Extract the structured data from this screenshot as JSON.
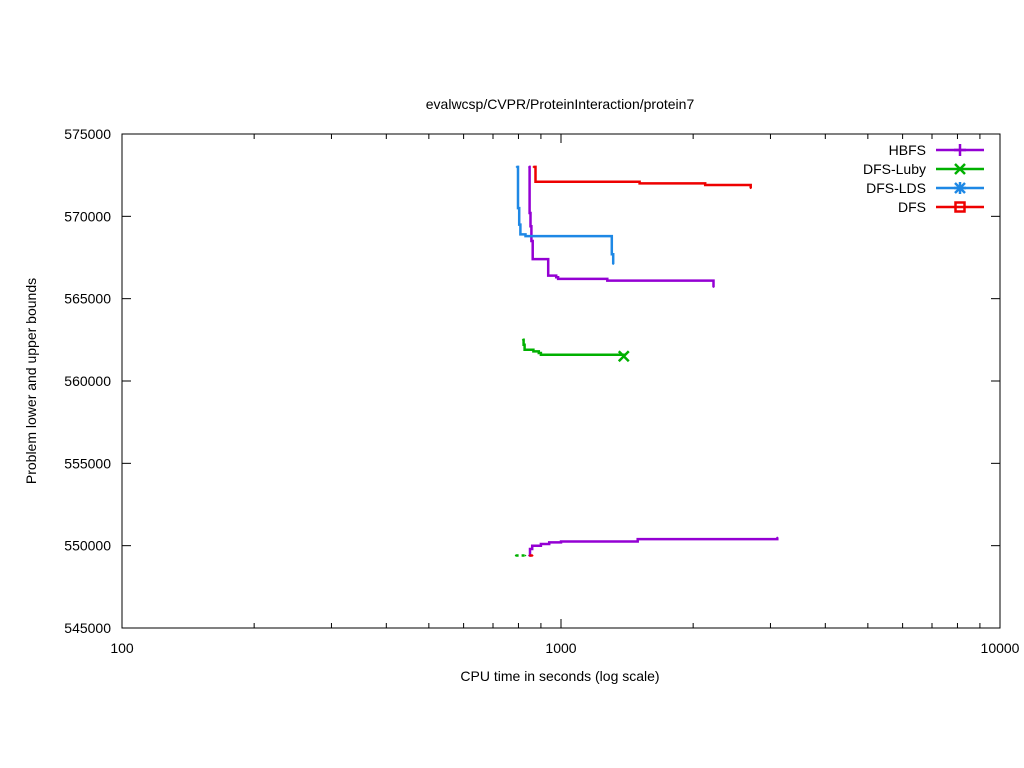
{
  "chart_data": {
    "type": "line",
    "title": "evalwcsp/CVPR/ProteinInteraction/protein7",
    "xlabel": "CPU time in seconds (log scale)",
    "ylabel": "Problem lower and upper bounds",
    "xscale": "log",
    "xlim": [
      100,
      10000
    ],
    "ylim": [
      545000,
      575000
    ],
    "x_ticks": [
      100,
      1000,
      10000
    ],
    "x_tick_labels": [
      "100",
      "1000",
      "10000"
    ],
    "y_ticks": [
      545000,
      550000,
      555000,
      560000,
      565000,
      570000,
      575000
    ],
    "y_tick_labels": [
      "545000",
      "550000",
      "555000",
      "560000",
      "565000",
      "570000",
      "575000"
    ],
    "grid": false,
    "legend_position": "top-right",
    "series": [
      {
        "name": "HBFS",
        "color": "#9400d3",
        "marker": "plus",
        "upper": [
          [
            845,
            573000
          ],
          [
            848,
            570200
          ],
          [
            852,
            569400
          ],
          [
            856,
            568500
          ],
          [
            862,
            567400
          ],
          [
            920,
            567400
          ],
          [
            935,
            566400
          ],
          [
            975,
            566300
          ],
          [
            985,
            566200
          ],
          [
            1270,
            566200
          ],
          [
            1275,
            566100
          ],
          [
            2220,
            566100
          ],
          [
            2225,
            565700
          ]
        ],
        "lower": [
          [
            845,
            549400
          ],
          [
            850,
            549800
          ],
          [
            860,
            550000
          ],
          [
            900,
            550100
          ],
          [
            940,
            550200
          ],
          [
            1000,
            550250
          ],
          [
            1490,
            550250
          ],
          [
            1495,
            550400
          ],
          [
            3100,
            550400
          ],
          [
            3110,
            550500
          ]
        ]
      },
      {
        "name": "DFS-Luby",
        "color": "#00b000",
        "marker": "x",
        "upper": [
          [
            818,
            562500
          ],
          [
            822,
            562200
          ],
          [
            826,
            561900
          ],
          [
            865,
            561800
          ],
          [
            890,
            561700
          ],
          [
            900,
            561600
          ],
          [
            1390,
            561500
          ]
        ],
        "lower": [
          [
            788,
            549400
          ],
          [
            830,
            549400
          ]
        ]
      },
      {
        "name": "DFS-LDS",
        "color": "#1e88e5",
        "marker": "star",
        "upper": [
          [
            792,
            573000
          ],
          [
            798,
            570500
          ],
          [
            803,
            569500
          ],
          [
            808,
            568900
          ],
          [
            830,
            568800
          ],
          [
            1300,
            568800
          ],
          [
            1305,
            567700
          ],
          [
            1315,
            567100
          ]
        ],
        "lower": []
      },
      {
        "name": "DFS",
        "color": "#ee0000",
        "marker": "square",
        "upper": [
          [
            865,
            573000
          ],
          [
            875,
            572100
          ],
          [
            1500,
            572100
          ],
          [
            1510,
            572000
          ],
          [
            2120,
            572000
          ],
          [
            2130,
            571900
          ],
          [
            2700,
            571900
          ],
          [
            2705,
            571700
          ]
        ],
        "lower": [
          [
            848,
            549400
          ],
          [
            862,
            549400
          ]
        ]
      }
    ]
  }
}
